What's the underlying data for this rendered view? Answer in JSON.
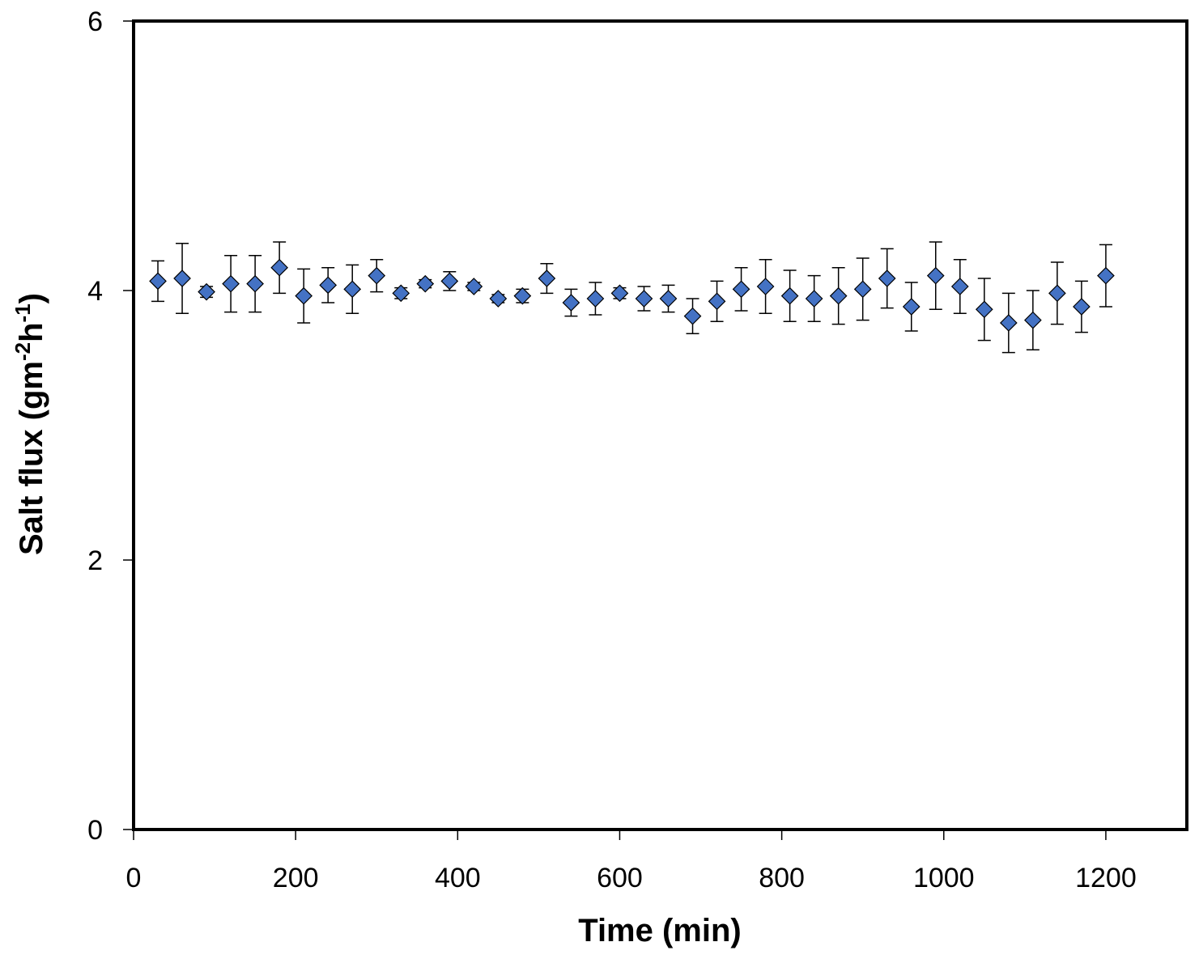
{
  "chart_data": {
    "type": "scatter",
    "title": "",
    "xlabel": "Time (min)",
    "ylabel": {
      "text": "Salt flux (gm",
      "sup1": "-2",
      "mid": "h",
      "sup2": "-1",
      "end": ")"
    },
    "xlim": [
      0,
      1300
    ],
    "ylim": [
      0,
      6
    ],
    "x_ticks": [
      0,
      200,
      400,
      600,
      800,
      1000,
      1200
    ],
    "x_tick_labels": [
      "0",
      "200",
      "400",
      "600",
      "800",
      "1000",
      "1200"
    ],
    "y_ticks": [
      0,
      2,
      4,
      6
    ],
    "y_tick_labels": [
      "0",
      "2",
      "4",
      "6"
    ],
    "grid": false,
    "legend": "none",
    "marker": "diamond",
    "marker_color": "#4472C4",
    "error_bar_color": "#000000",
    "series": [
      {
        "x": [
          30,
          60,
          90,
          120,
          150,
          180,
          210,
          240,
          270,
          300,
          330,
          360,
          390,
          420,
          450,
          480,
          510,
          540,
          570,
          600,
          630,
          660,
          690,
          720,
          750,
          780,
          810,
          840,
          870,
          900,
          930,
          960,
          990,
          1020,
          1050,
          1080,
          1110,
          1140,
          1170,
          1200
        ],
        "y": [
          4.07,
          4.09,
          3.99,
          4.05,
          4.05,
          4.17,
          3.96,
          4.04,
          4.01,
          4.11,
          3.98,
          4.05,
          4.07,
          4.03,
          3.94,
          3.96,
          4.09,
          3.91,
          3.94,
          3.98,
          3.94,
          3.94,
          3.81,
          3.92,
          4.01,
          4.03,
          3.96,
          3.94,
          3.96,
          4.01,
          4.09,
          3.88,
          4.11,
          4.03,
          3.86,
          3.76,
          3.78,
          3.98,
          3.88,
          4.11
        ],
        "error": [
          0.15,
          0.26,
          0.04,
          0.21,
          0.21,
          0.19,
          0.2,
          0.13,
          0.18,
          0.12,
          0.04,
          0.03,
          0.07,
          0.03,
          0.03,
          0.05,
          0.11,
          0.1,
          0.12,
          0.04,
          0.09,
          0.1,
          0.13,
          0.15,
          0.16,
          0.2,
          0.19,
          0.17,
          0.21,
          0.23,
          0.22,
          0.18,
          0.25,
          0.2,
          0.23,
          0.22,
          0.22,
          0.23,
          0.19,
          0.23
        ]
      }
    ]
  }
}
